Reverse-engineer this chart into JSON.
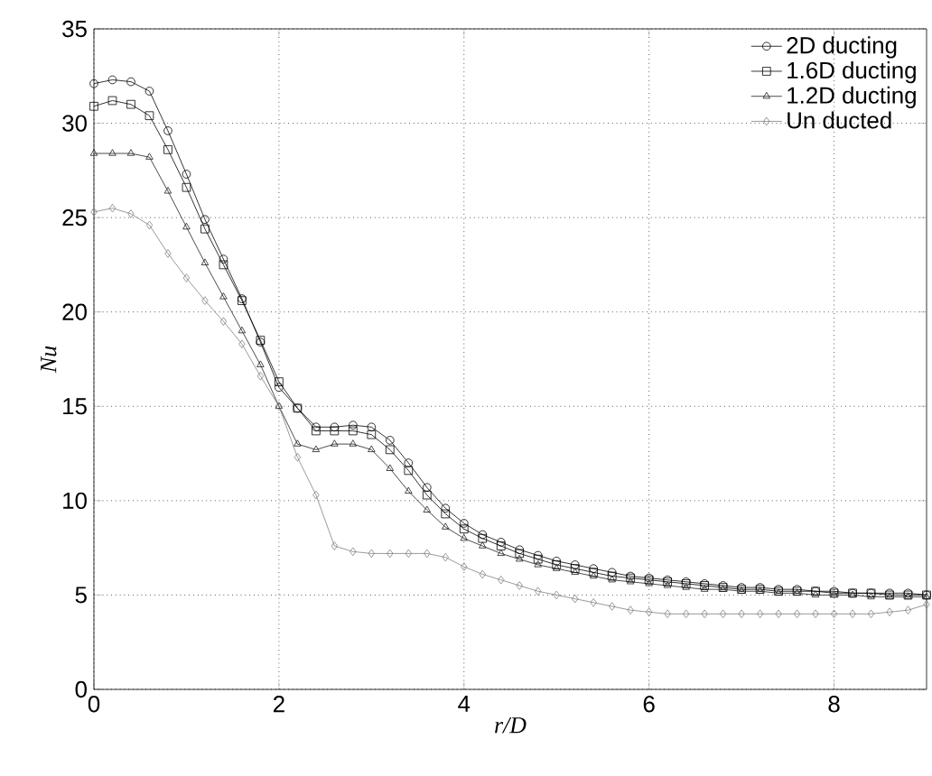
{
  "chart_data": {
    "type": "line",
    "xlabel": "r/D",
    "ylabel": "Nu",
    "x": [
      0,
      0.2,
      0.4,
      0.6,
      0.8,
      1.0,
      1.2,
      1.4,
      1.6,
      1.8,
      2.0,
      2.2,
      2.4,
      2.6,
      2.8,
      3.0,
      3.2,
      3.4,
      3.6,
      3.8,
      4.0,
      4.2,
      4.4,
      4.6,
      4.8,
      5.0,
      5.2,
      5.4,
      5.6,
      5.8,
      6.0,
      6.2,
      6.4,
      6.6,
      6.8,
      7.0,
      7.2,
      7.4,
      7.6,
      7.8,
      8.0,
      8.2,
      8.4,
      8.6,
      8.8,
      9.0
    ],
    "series": [
      {
        "name": "2D ducting",
        "color": "#000000",
        "marker": "circle",
        "values": [
          32.1,
          32.3,
          32.2,
          31.7,
          29.6,
          27.3,
          24.9,
          22.8,
          20.7,
          18.4,
          16.0,
          14.9,
          13.9,
          13.9,
          14.0,
          13.9,
          13.2,
          12.0,
          10.7,
          9.6,
          8.8,
          8.2,
          7.8,
          7.4,
          7.1,
          6.8,
          6.6,
          6.4,
          6.2,
          6.0,
          5.9,
          5.8,
          5.7,
          5.6,
          5.5,
          5.4,
          5.4,
          5.3,
          5.3,
          5.2,
          5.2,
          5.1,
          5.1,
          5.1,
          5.1,
          5.0
        ]
      },
      {
        "name": "1.6D ducting",
        "color": "#000000",
        "marker": "square",
        "values": [
          30.9,
          31.2,
          31.0,
          30.4,
          28.6,
          26.6,
          24.4,
          22.5,
          20.6,
          18.5,
          16.3,
          14.9,
          13.7,
          13.7,
          13.7,
          13.5,
          12.7,
          11.6,
          10.3,
          9.3,
          8.5,
          8.0,
          7.6,
          7.2,
          6.9,
          6.6,
          6.4,
          6.2,
          6.0,
          5.9,
          5.8,
          5.7,
          5.6,
          5.5,
          5.4,
          5.3,
          5.3,
          5.2,
          5.2,
          5.2,
          5.1,
          5.1,
          5.1,
          5.0,
          5.0,
          5.0
        ]
      },
      {
        "name": "1.2D ducting",
        "color": "#202020",
        "marker": "triangle",
        "values": [
          28.4,
          28.4,
          28.4,
          28.2,
          26.4,
          24.5,
          22.6,
          20.8,
          19.0,
          17.2,
          15.0,
          13.0,
          12.7,
          13.0,
          13.0,
          12.7,
          11.7,
          10.5,
          9.5,
          8.6,
          8.0,
          7.6,
          7.2,
          6.9,
          6.6,
          6.4,
          6.2,
          6.0,
          5.8,
          5.7,
          5.6,
          5.5,
          5.4,
          5.3,
          5.3,
          5.2,
          5.2,
          5.1,
          5.1,
          5.0,
          5.0,
          5.0,
          4.9,
          4.9,
          4.9,
          4.9
        ]
      },
      {
        "name": "Un ducted",
        "color": "#808080",
        "marker": "diamond",
        "values": [
          25.3,
          25.5,
          25.2,
          24.6,
          23.1,
          21.8,
          20.6,
          19.5,
          18.3,
          16.6,
          15.0,
          12.3,
          10.3,
          7.6,
          7.3,
          7.2,
          7.2,
          7.2,
          7.2,
          7.0,
          6.5,
          6.1,
          5.8,
          5.5,
          5.2,
          5.0,
          4.8,
          4.6,
          4.4,
          4.2,
          4.1,
          4.0,
          4.0,
          4.0,
          4.0,
          4.0,
          4.0,
          4.0,
          4.0,
          4.0,
          4.0,
          4.0,
          4.0,
          4.1,
          4.2,
          4.5
        ]
      }
    ],
    "xlim": [
      0,
      9
    ],
    "ylim": [
      0,
      35
    ],
    "xticks": [
      0,
      2,
      4,
      6,
      8
    ],
    "yticks": [
      0,
      5,
      10,
      15,
      20,
      25,
      30,
      35
    ],
    "grid": true,
    "legend": "top right"
  }
}
